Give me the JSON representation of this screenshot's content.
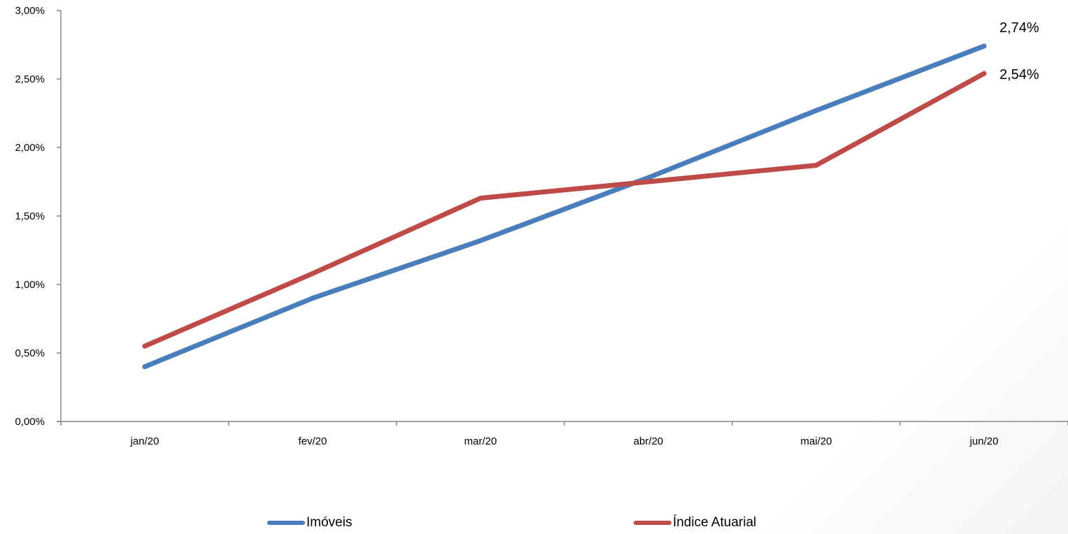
{
  "chart_data": {
    "type": "line",
    "title": "",
    "xlabel": "",
    "ylabel": "",
    "categories": [
      "jan/20",
      "fev/20",
      "mar/20",
      "abr/20",
      "mai/20",
      "jun/20"
    ],
    "y_ticks": [
      "0,00%",
      "0,50%",
      "1,00%",
      "1,50%",
      "2,00%",
      "2,50%",
      "3,00%"
    ],
    "ylim": [
      0,
      3
    ],
    "grid": false,
    "legend_position": "bottom",
    "series": [
      {
        "name": "Imóveis",
        "color": "#4a7ebb",
        "values": [
          0.4,
          0.9,
          1.32,
          1.78,
          2.27,
          2.74
        ],
        "end_label": "2,74%"
      },
      {
        "name": "Índice Atuarial",
        "color": "#be4b48",
        "values": [
          0.55,
          1.08,
          1.63,
          1.75,
          1.87,
          2.54
        ],
        "end_label": "2,54%"
      }
    ]
  }
}
